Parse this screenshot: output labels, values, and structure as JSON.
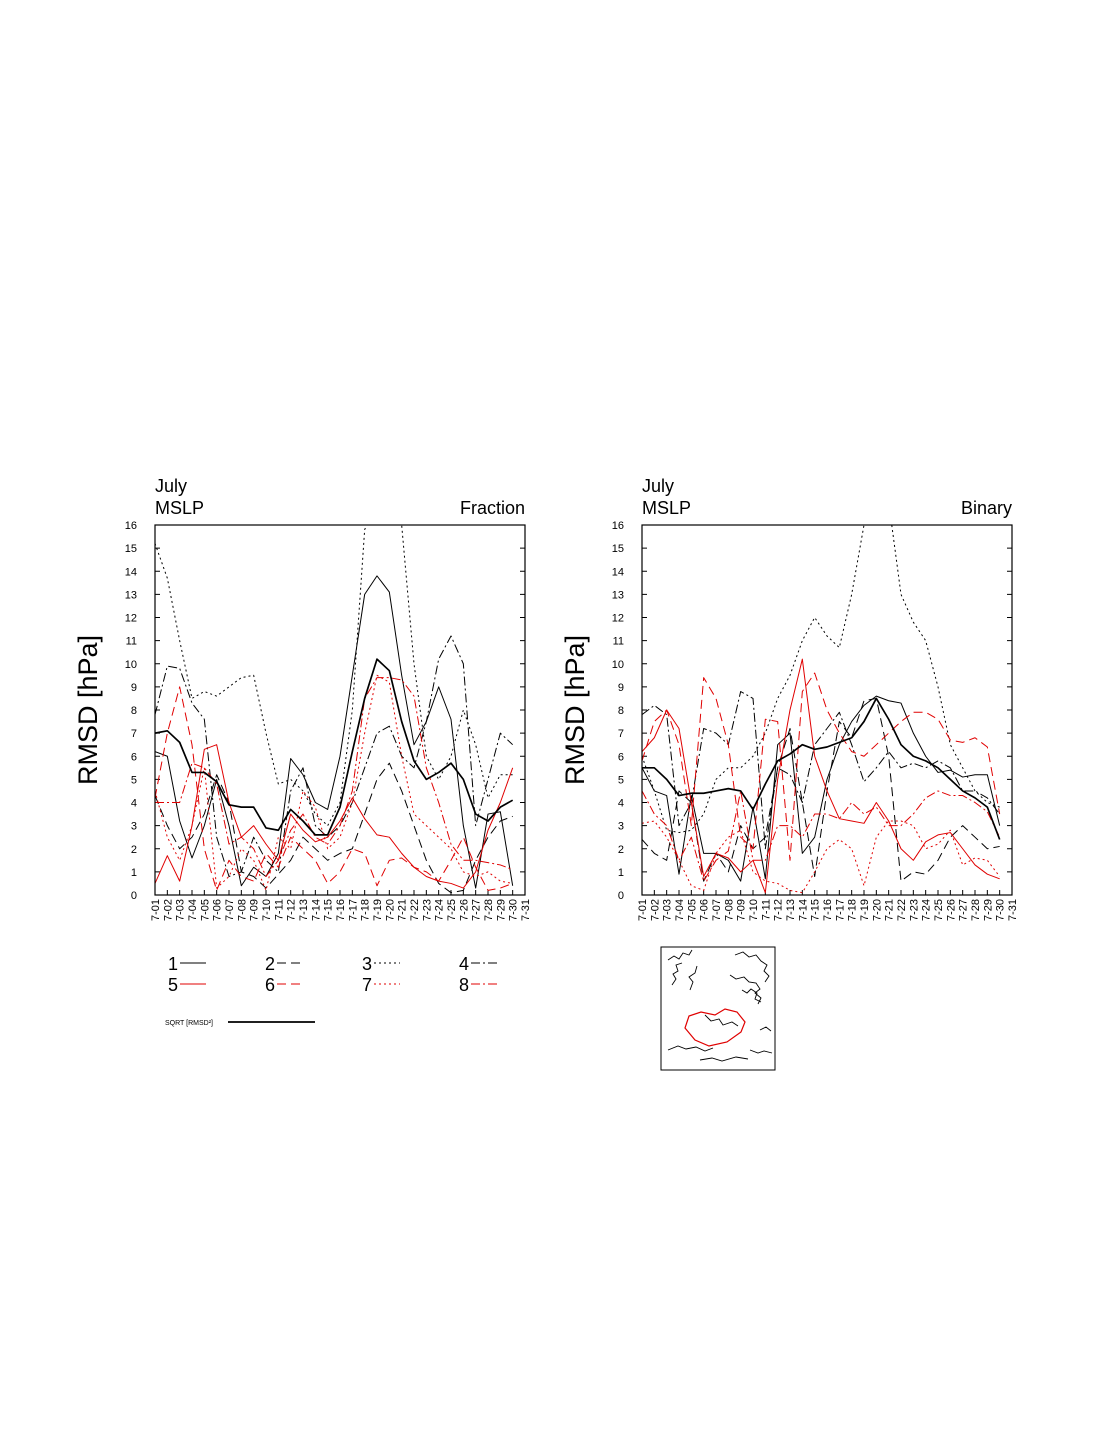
{
  "chart_data": [
    {
      "type": "line",
      "title": "July",
      "subtitle": "MSLP",
      "label_right": "Fraction",
      "ylabel": "RMSD [hPa]",
      "categories": [
        "7-01",
        "7-02",
        "7-03",
        "7-04",
        "7-05",
        "7-06",
        "7-07",
        "7-08",
        "7-09",
        "7-10",
        "7-11",
        "7-12",
        "7-13",
        "7-14",
        "7-15",
        "7-16",
        "7-17",
        "7-18",
        "7-19",
        "7-20",
        "7-21",
        "7-22",
        "7-23",
        "7-24",
        "7-25",
        "7-26",
        "7-27",
        "7-28",
        "7-29",
        "7-30",
        "7-31"
      ],
      "ylim": [
        0,
        16
      ],
      "yticks": [
        0,
        1,
        2,
        3,
        4,
        5,
        6,
        7,
        8,
        9,
        10,
        11,
        12,
        13,
        14,
        15,
        16
      ],
      "grid": false,
      "series": [
        {
          "name": "1",
          "color": "#000000",
          "dash": "solid",
          "width": 1,
          "values": [
            6.2,
            6.0,
            3.2,
            1.6,
            3.0,
            5.0,
            3.0,
            0.4,
            1.2,
            0.8,
            1.8,
            5.9,
            5.2,
            4.0,
            3.7,
            6.0,
            9.5,
            13.0,
            13.8,
            13.1,
            9.5,
            6.5,
            7.5,
            9.0,
            7.6,
            3.0,
            0.3,
            3.5,
            3.6,
            0.4,
            null
          ]
        },
        {
          "name": "2",
          "color": "#000000",
          "dash": "dashed",
          "width": 1,
          "values": [
            4.3,
            3.0,
            2.0,
            2.5,
            3.5,
            5.2,
            4.0,
            1.0,
            0.8,
            0.3,
            0.9,
            1.5,
            2.5,
            2.0,
            1.5,
            1.8,
            2.0,
            3.5,
            5.0,
            5.7,
            4.5,
            3.0,
            1.5,
            0.5,
            0.1,
            0.2,
            1.5,
            2.5,
            3.2,
            3.4,
            null
          ]
        },
        {
          "name": "3",
          "color": "#000000",
          "dash": "dotted",
          "width": 1,
          "values": [
            15.2,
            13.7,
            11.0,
            8.5,
            8.8,
            8.6,
            9.0,
            9.4,
            9.5,
            7.0,
            4.8,
            5.0,
            4.5,
            3.5,
            3.0,
            4.0,
            8.0,
            15.8,
            17.0,
            17.0,
            16.0,
            10.0,
            6.0,
            5.0,
            6.0,
            8.0,
            6.5,
            4.2,
            5.2,
            5.2,
            null
          ]
        },
        {
          "name": "4",
          "color": "#000000",
          "dash": "dashdot",
          "width": 1,
          "values": [
            7.8,
            9.9,
            9.8,
            8.3,
            7.6,
            2.5,
            0.8,
            1.0,
            2.5,
            1.5,
            1.0,
            4.5,
            5.5,
            3.0,
            2.5,
            3.0,
            4.0,
            5.5,
            7.0,
            7.3,
            6.0,
            5.5,
            7.5,
            10.2,
            11.2,
            10.0,
            3.0,
            5.0,
            7.0,
            6.5,
            null
          ]
        },
        {
          "name": "5",
          "color": "#e00000",
          "dash": "solid",
          "width": 1,
          "values": [
            0.5,
            1.7,
            0.6,
            3.0,
            6.3,
            6.5,
            4.0,
            2.5,
            3.0,
            2.2,
            1.5,
            3.5,
            2.8,
            2.3,
            2.5,
            3.2,
            4.2,
            3.3,
            2.6,
            2.5,
            1.8,
            1.2,
            0.8,
            0.6,
            0.5,
            0.3,
            1.0,
            2.8,
            4.0,
            5.5,
            null
          ]
        },
        {
          "name": "6",
          "color": "#e00000",
          "dash": "dashed",
          "width": 1,
          "values": [
            4.2,
            7.0,
            9.0,
            6.5,
            2.0,
            0.2,
            1.5,
            0.8,
            0.6,
            1.8,
            1.2,
            2.5,
            2.0,
            1.5,
            0.5,
            1.0,
            2.0,
            1.8,
            0.4,
            1.5,
            1.6,
            1.2,
            1.0,
            0.6,
            1.5,
            2.5,
            1.2,
            0.2,
            0.3,
            0.5,
            null
          ]
        },
        {
          "name": "7",
          "color": "#e00000",
          "dash": "dotted",
          "width": 1,
          "values": [
            4.5,
            2.5,
            1.5,
            3.0,
            5.5,
            0.3,
            0.8,
            2.0,
            1.5,
            0.2,
            2.5,
            2.0,
            4.5,
            3.8,
            2.0,
            2.5,
            4.0,
            7.0,
            9.5,
            9.2,
            6.0,
            3.5,
            3.0,
            2.5,
            2.0,
            1.0,
            0.8,
            1.0,
            0.6,
            0.5,
            null
          ]
        },
        {
          "name": "8",
          "color": "#e00000",
          "dash": "dashdot",
          "width": 1,
          "values": [
            4.0,
            4.0,
            4.0,
            5.7,
            5.5,
            4.8,
            2.2,
            2.5,
            2.0,
            0.8,
            1.5,
            2.8,
            3.5,
            2.5,
            2.2,
            3.0,
            4.5,
            8.5,
            9.4,
            9.4,
            9.3,
            8.6,
            5.5,
            4.0,
            2.2,
            1.5,
            1.5,
            1.4,
            1.3,
            1.1,
            null
          ]
        },
        {
          "name": "SQRT [RMSD²]",
          "color": "#000000",
          "dash": "solid",
          "width": 1.7,
          "values": [
            7.0,
            7.1,
            6.6,
            5.3,
            5.3,
            4.9,
            3.9,
            3.8,
            3.8,
            2.9,
            2.8,
            3.7,
            3.2,
            2.6,
            2.6,
            3.8,
            6.2,
            8.5,
            10.2,
            9.7,
            7.5,
            5.8,
            5.0,
            5.3,
            5.7,
            5.0,
            3.5,
            3.2,
            3.8,
            4.1,
            null
          ]
        }
      ]
    },
    {
      "type": "line",
      "title": "July",
      "subtitle": "MSLP",
      "label_right": "Binary",
      "ylabel": "RMSD [hPa]",
      "categories": [
        "7-01",
        "7-02",
        "7-03",
        "7-04",
        "7-05",
        "7-06",
        "7-07",
        "7-08",
        "7-09",
        "7-10",
        "7-11",
        "7-12",
        "7-13",
        "7-14",
        "7-15",
        "7-16",
        "7-17",
        "7-18",
        "7-19",
        "7-20",
        "7-21",
        "7-22",
        "7-23",
        "7-24",
        "7-25",
        "7-26",
        "7-27",
        "7-28",
        "7-29",
        "7-30",
        "7-31"
      ],
      "ylim": [
        0,
        16
      ],
      "yticks": [
        0,
        1,
        2,
        3,
        4,
        5,
        6,
        7,
        8,
        9,
        10,
        11,
        12,
        13,
        14,
        15,
        16
      ],
      "grid": false,
      "series": [
        {
          "color": "#000000",
          "dash": "solid",
          "width": 1,
          "values": [
            5.5,
            4.5,
            4.3,
            0.9,
            4.3,
            1.8,
            1.8,
            1.5,
            0.6,
            3.8,
            0.7,
            6.5,
            7.0,
            1.8,
            2.5,
            5.0,
            6.5,
            7.5,
            8.2,
            8.6,
            8.4,
            8.3,
            7.0,
            6.0,
            5.3,
            5.4,
            5.1,
            5.2,
            5.2,
            3.0,
            null
          ]
        },
        {
          "color": "#000000",
          "dash": "dashed",
          "width": 1,
          "values": [
            2.4,
            1.8,
            1.5,
            4.5,
            4.0,
            0.6,
            1.8,
            1.0,
            3.0,
            2.0,
            2.5,
            5.5,
            7.2,
            4.0,
            0.8,
            4.5,
            7.5,
            6.8,
            8.4,
            8.5,
            6.0,
            0.6,
            1.0,
            0.9,
            1.5,
            2.5,
            3.0,
            2.5,
            2.0,
            2.1,
            null
          ]
        },
        {
          "color": "#000000",
          "dash": "dotted",
          "width": 1,
          "values": [
            6.0,
            4.5,
            2.8,
            2.7,
            2.8,
            3.5,
            5.0,
            5.5,
            5.5,
            6.0,
            7.0,
            8.5,
            9.5,
            11.0,
            12.0,
            11.2,
            10.7,
            13.0,
            16.0,
            17.5,
            17.0,
            13.0,
            11.8,
            11.0,
            9.0,
            6.5,
            5.5,
            4.5,
            4.0,
            3.8,
            null
          ]
        },
        {
          "color": "#000000",
          "dash": "dashdot",
          "width": 1,
          "values": [
            7.8,
            8.2,
            7.8,
            3.0,
            4.0,
            7.2,
            7.0,
            6.5,
            8.8,
            8.5,
            2.0,
            5.5,
            5.2,
            4.0,
            6.5,
            7.2,
            7.9,
            6.5,
            4.9,
            5.5,
            6.2,
            5.5,
            5.7,
            5.5,
            5.8,
            5.5,
            4.5,
            4.5,
            4.2,
            3.5,
            null
          ]
        },
        {
          "color": "#e00000",
          "dash": "solid",
          "width": 1,
          "values": [
            6.2,
            6.8,
            8.0,
            7.2,
            4.0,
            0.8,
            1.8,
            1.6,
            1.0,
            1.5,
            0.1,
            5.0,
            8.0,
            10.2,
            6.0,
            4.5,
            3.3,
            3.2,
            3.1,
            4.0,
            3.2,
            2.0,
            1.5,
            2.3,
            2.6,
            2.7,
            2.0,
            1.3,
            0.9,
            0.7,
            null
          ]
        },
        {
          "color": "#e00000",
          "dash": "dashed",
          "width": 1,
          "values": [
            5.8,
            7.5,
            8.0,
            6.5,
            3.0,
            9.4,
            8.5,
            6.5,
            2.5,
            2.0,
            7.6,
            7.5,
            1.5,
            8.8,
            9.6,
            8.0,
            7.0,
            6.2,
            6.0,
            6.5,
            7.0,
            7.5,
            7.9,
            7.9,
            7.6,
            6.7,
            6.6,
            6.8,
            6.4,
            3.5,
            null
          ]
        },
        {
          "color": "#e00000",
          "dash": "dotted",
          "width": 1,
          "values": [
            3.1,
            3.2,
            2.5,
            1.5,
            0.4,
            0.2,
            1.8,
            2.5,
            2.8,
            1.0,
            0.6,
            0.5,
            0.2,
            0.1,
            1.0,
            2.0,
            2.4,
            2.0,
            0.4,
            2.5,
            3.2,
            3.2,
            3.0,
            2.0,
            2.2,
            2.8,
            1.3,
            1.6,
            1.5,
            0.8,
            null
          ]
        },
        {
          "color": "#e00000",
          "dash": "dashdot",
          "width": 1,
          "values": [
            4.5,
            3.5,
            3.0,
            1.5,
            2.5,
            0.6,
            1.5,
            1.9,
            4.5,
            1.5,
            1.5,
            3.0,
            3.0,
            2.5,
            3.5,
            3.5,
            3.3,
            4.0,
            3.5,
            3.8,
            3.0,
            3.0,
            3.5,
            4.2,
            4.5,
            4.3,
            4.3,
            4.0,
            3.6,
            2.5,
            null
          ]
        },
        {
          "color": "#000000",
          "dash": "solid",
          "width": 1.7,
          "values": [
            5.5,
            5.5,
            5.0,
            4.3,
            4.4,
            4.4,
            4.5,
            4.6,
            4.5,
            3.7,
            4.8,
            5.8,
            6.1,
            6.5,
            6.3,
            6.4,
            6.6,
            6.8,
            7.5,
            8.5,
            7.6,
            6.5,
            6.0,
            5.8,
            5.5,
            5.0,
            4.5,
            4.2,
            3.8,
            2.4,
            null
          ]
        }
      ]
    }
  ]
}
